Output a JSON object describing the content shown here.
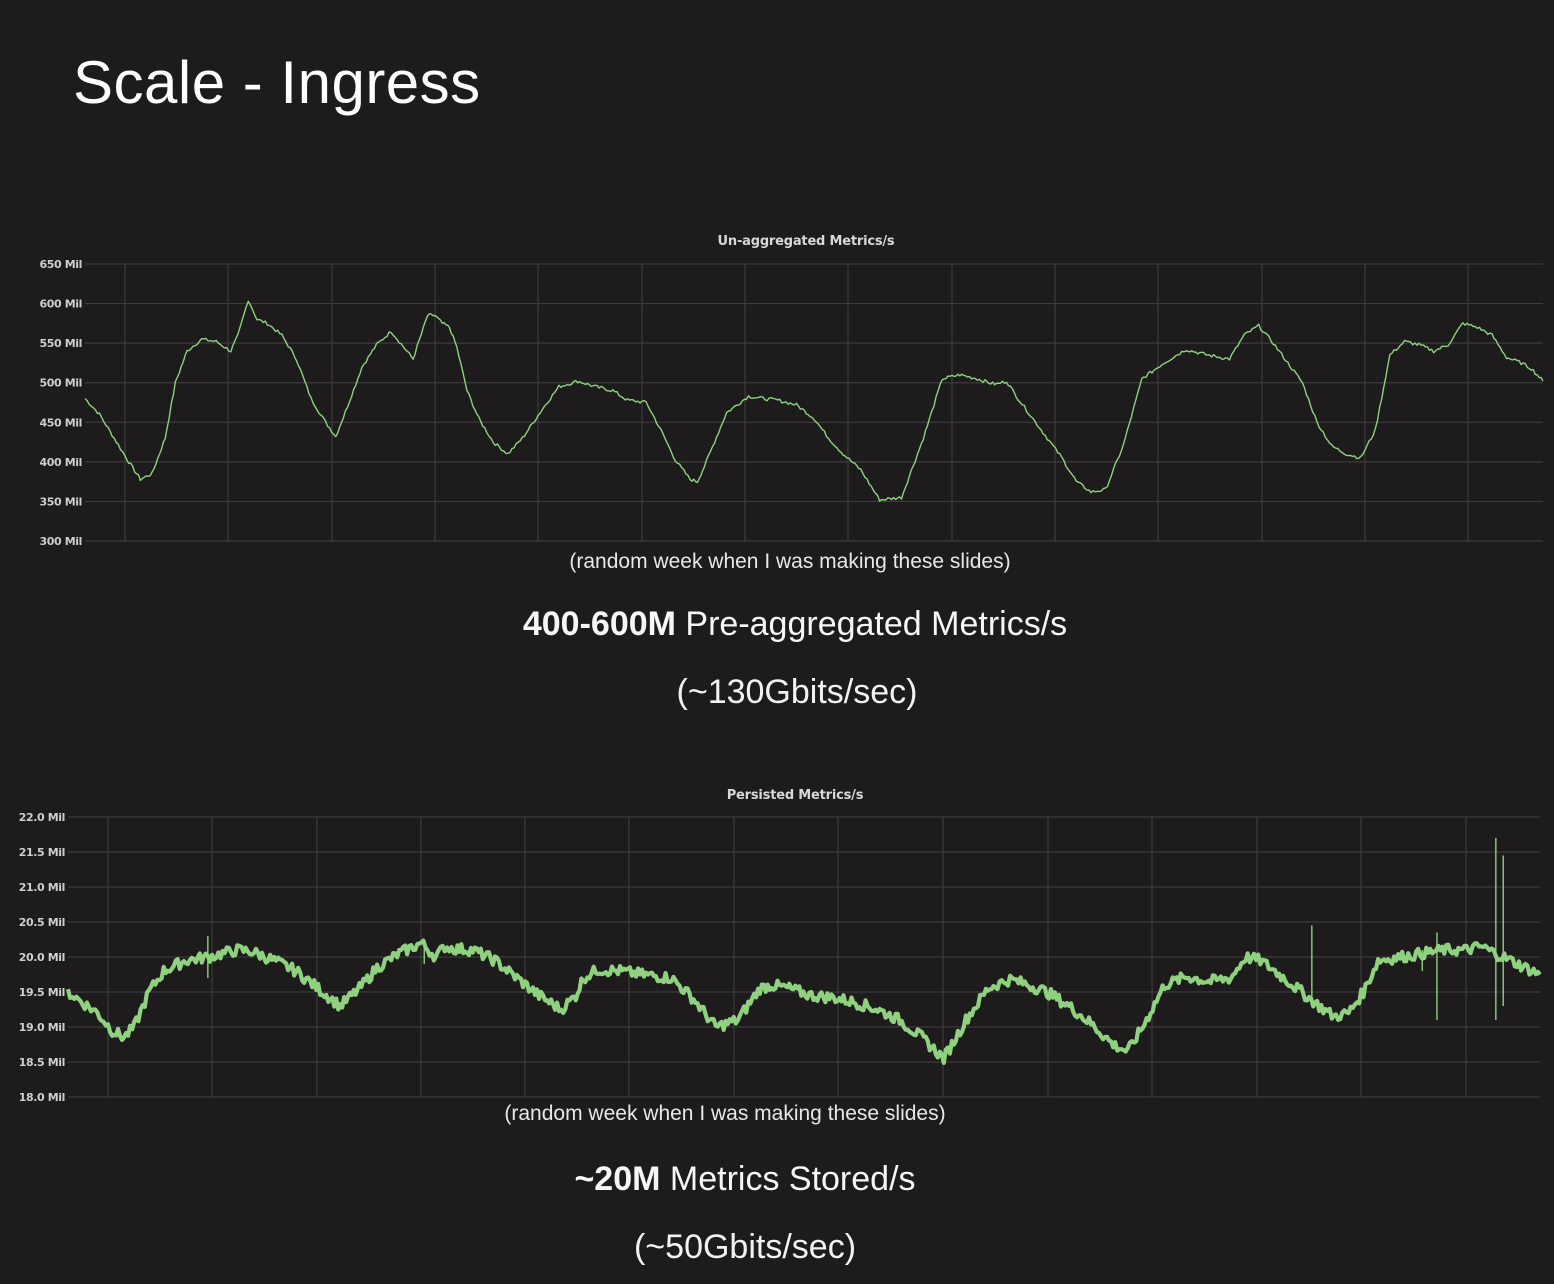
{
  "slide": {
    "title": "Scale - Ingress"
  },
  "sections": [
    {
      "caption": "(random week when I was making these slides)",
      "headline_bold": "400-600M",
      "headline_rest": " Pre-aggregated Metrics/s",
      "subline": "(~130Gbits/sec)"
    },
    {
      "caption": "(random week when I was making these slides)",
      "headline_bold": "~20M",
      "headline_rest": " Metrics Stored/s",
      "subline": "(~50Gbits/sec)"
    }
  ],
  "colors": {
    "background": "#1d1b1c",
    "grid": "#3d3b3c",
    "series": "#8fd17e"
  },
  "chart_data": [
    {
      "type": "line",
      "title": "Un-aggregated Metrics/s",
      "xlabel": "(random week when I was making these slides)",
      "ylabel": "",
      "ylim": [
        300,
        650
      ],
      "y_unit": "Mil",
      "yticks": [
        "650 Mil",
        "600 Mil",
        "550 Mil",
        "500 Mil",
        "450 Mil",
        "400 Mil",
        "350 Mil",
        "300 Mil"
      ],
      "ytick_values": [
        650,
        600,
        550,
        500,
        450,
        400,
        350,
        300
      ],
      "grid": true,
      "legend": null,
      "x_range": [
        0,
        1
      ],
      "series": [
        {
          "name": "Un-aggregated Metrics/s",
          "x": [
            0.0,
            0.01,
            0.02,
            0.03,
            0.038,
            0.046,
            0.055,
            0.062,
            0.07,
            0.08,
            0.09,
            0.1,
            0.105,
            0.112,
            0.118,
            0.125,
            0.135,
            0.145,
            0.155,
            0.165,
            0.172,
            0.18,
            0.19,
            0.2,
            0.21,
            0.225,
            0.235,
            0.24,
            0.245,
            0.25,
            0.255,
            0.262,
            0.27,
            0.28,
            0.29,
            0.3,
            0.315,
            0.325,
            0.338,
            0.35,
            0.362,
            0.372,
            0.385,
            0.395,
            0.405,
            0.415,
            0.42,
            0.425,
            0.44,
            0.455,
            0.465,
            0.475,
            0.488,
            0.5,
            0.51,
            0.52,
            0.532,
            0.545,
            0.56,
            0.575,
            0.588,
            0.6,
            0.612,
            0.62,
            0.625,
            0.632,
            0.64,
            0.65,
            0.66,
            0.67,
            0.68,
            0.69,
            0.7,
            0.712,
            0.725,
            0.74,
            0.755,
            0.77,
            0.785,
            0.795,
            0.805,
            0.815,
            0.825,
            0.835,
            0.845,
            0.855,
            0.865,
            0.875,
            0.885,
            0.895,
            0.905,
            0.915,
            0.925,
            0.935,
            0.945,
            0.955,
            0.965,
            0.975,
            0.985,
            0.992,
            1.0
          ],
          "values": [
            480,
            460,
            430,
            400,
            378,
            385,
            430,
            500,
            540,
            555,
            552,
            540,
            560,
            605,
            580,
            575,
            560,
            530,
            480,
            450,
            432,
            470,
            520,
            548,
            565,
            530,
            585,
            585,
            575,
            570,
            545,
            490,
            455,
            425,
            410,
            430,
            470,
            495,
            502,
            495,
            490,
            478,
            475,
            440,
            402,
            378,
            375,
            395,
            462,
            483,
            480,
            478,
            472,
            455,
            430,
            410,
            390,
            352,
            355,
            430,
            505,
            510,
            505,
            500,
            498,
            502,
            480,
            455,
            430,
            405,
            375,
            362,
            365,
            420,
            505,
            525,
            542,
            535,
            530,
            560,
            572,
            550,
            525,
            500,
            450,
            420,
            410,
            405,
            440,
            535,
            552,
            548,
            540,
            548,
            575,
            570,
            560,
            532,
            525,
            518,
            502
          ]
        }
      ]
    },
    {
      "type": "line",
      "title": "Persisted Metrics/s",
      "xlabel": "(random week when I was making these slides)",
      "ylabel": "",
      "ylim": [
        18.0,
        22.0
      ],
      "y_unit": "Mil",
      "yticks": [
        "22.0 Mil",
        "21.5 Mil",
        "21.0 Mil",
        "20.5 Mil",
        "20.0 Mil",
        "19.5 Mil",
        "19.0 Mil",
        "18.5 Mil",
        "18.0 Mil"
      ],
      "ytick_values": [
        22.0,
        21.5,
        21.0,
        20.5,
        20.0,
        19.5,
        19.0,
        18.5,
        18.0
      ],
      "grid": true,
      "legend": null,
      "x_range": [
        0,
        1
      ],
      "series": [
        {
          "name": "Persisted Metrics/s",
          "x": [
            0.0,
            0.01,
            0.02,
            0.03,
            0.038,
            0.045,
            0.055,
            0.065,
            0.08,
            0.095,
            0.105,
            0.115,
            0.125,
            0.14,
            0.155,
            0.17,
            0.185,
            0.198,
            0.21,
            0.225,
            0.24,
            0.25,
            0.256,
            0.262,
            0.275,
            0.29,
            0.305,
            0.32,
            0.335,
            0.345,
            0.35,
            0.36,
            0.375,
            0.39,
            0.41,
            0.425,
            0.44,
            0.455,
            0.465,
            0.47,
            0.478,
            0.49,
            0.505,
            0.52,
            0.535,
            0.55,
            0.565,
            0.58,
            0.595,
            0.61,
            0.625,
            0.63,
            0.64,
            0.65,
            0.665,
            0.68,
            0.695,
            0.71,
            0.72,
            0.73,
            0.745,
            0.76,
            0.775,
            0.79,
            0.8,
            0.81,
            0.82,
            0.835,
            0.85,
            0.86,
            0.87,
            0.88,
            0.89,
            0.905,
            0.92,
            0.935,
            0.95,
            0.96,
            0.97,
            0.98,
            0.99,
            1.0
          ],
          "values": [
            19.5,
            19.35,
            19.2,
            18.95,
            18.85,
            19.0,
            19.5,
            19.8,
            19.95,
            20.0,
            20.05,
            20.1,
            20.08,
            19.95,
            19.8,
            19.55,
            19.3,
            19.55,
            19.85,
            20.05,
            20.2,
            20.0,
            20.15,
            20.12,
            20.1,
            19.95,
            19.7,
            19.45,
            19.25,
            19.45,
            19.7,
            19.82,
            19.8,
            19.75,
            19.7,
            19.4,
            19.0,
            19.1,
            19.4,
            19.55,
            19.6,
            19.55,
            19.45,
            19.42,
            19.35,
            19.25,
            19.1,
            18.85,
            18.55,
            19.1,
            19.55,
            19.6,
            19.68,
            19.62,
            19.5,
            19.3,
            19.05,
            18.75,
            18.65,
            19.0,
            19.6,
            19.72,
            19.65,
            19.7,
            20.0,
            19.95,
            19.8,
            19.55,
            19.3,
            19.15,
            19.2,
            19.5,
            19.95,
            20.0,
            20.05,
            20.1,
            20.1,
            20.15,
            20.05,
            19.95,
            19.85,
            19.75
          ]
        }
      ]
    }
  ]
}
